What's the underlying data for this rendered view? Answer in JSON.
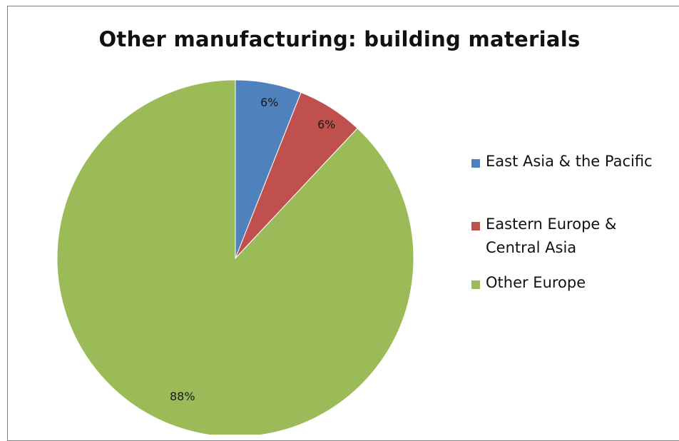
{
  "chart_data": {
    "type": "pie",
    "title": "Other manufacturing: building materials",
    "slices": [
      {
        "label": "East Asia & the Pacific",
        "value": 6,
        "value_label": "6%",
        "color": "#4f81bd"
      },
      {
        "label": "Eastern Europe & Central Asia",
        "value": 6,
        "value_label": "6%",
        "color": "#c0504d"
      },
      {
        "label": "Other Europe",
        "value": 88,
        "value_label": "88%",
        "color": "#9bbb59"
      }
    ],
    "legend_position": "right"
  }
}
